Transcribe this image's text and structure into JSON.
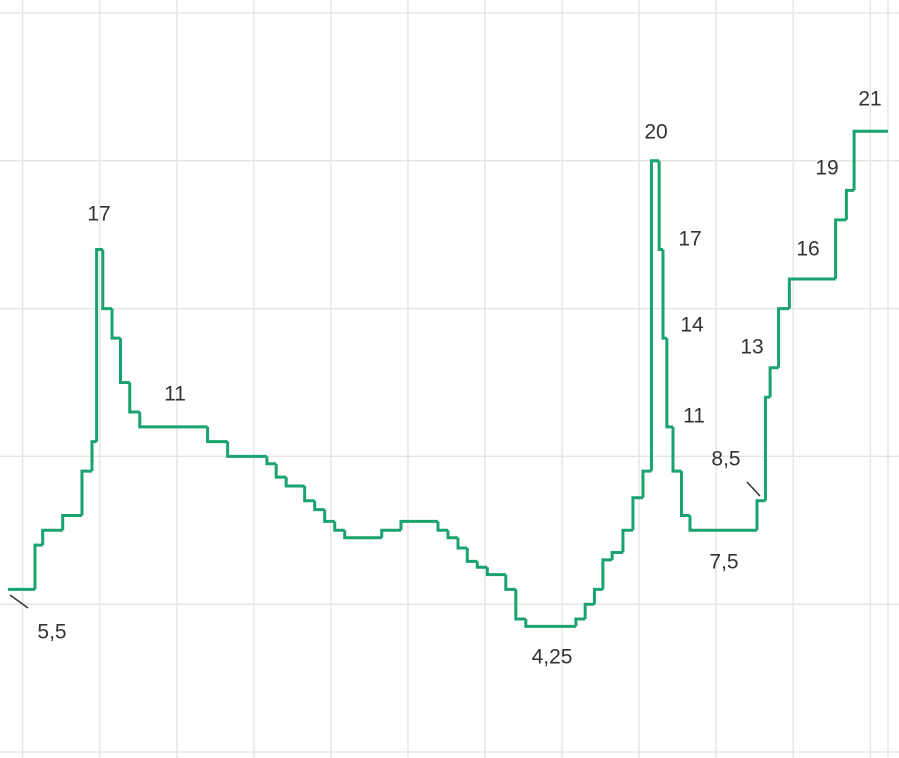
{
  "chart_data": {
    "type": "step",
    "x": [
      -0.19,
      0.16,
      0.26,
      0.52,
      0.77,
      0.9,
      0.96,
      1.04,
      1.16,
      1.27,
      1.39,
      1.52,
      2.4,
      2.66,
      3.17,
      3.29,
      3.42,
      3.66,
      3.79,
      3.92,
      4.05,
      4.18,
      4.66,
      4.91,
      5.39,
      5.52,
      5.65,
      5.77,
      5.9,
      6.03,
      6.27,
      6.4,
      6.53,
      7.18,
      7.3,
      7.42,
      7.53,
      7.65,
      7.79,
      7.92,
      8.05,
      8.16,
      8.26,
      8.31,
      8.36,
      8.44,
      8.55,
      8.66,
      9.53,
      9.64,
      9.7,
      9.81,
      9.95,
      10.55,
      10.69,
      10.79
    ],
    "values": [
      5.5,
      7,
      7.5,
      8,
      9.5,
      10.5,
      17,
      15,
      14,
      12.5,
      11.5,
      11,
      10.5,
      10,
      9.75,
      9.3,
      9,
      8.5,
      8.2,
      7.8,
      7.5,
      7.25,
      7.5,
      7.8,
      7.5,
      7.25,
      6.9,
      6.45,
      6.25,
      6,
      5.5,
      4.5,
      4.25,
      4.5,
      5,
      5.5,
      6.5,
      6.75,
      7.5,
      8.6,
      9.5,
      20,
      17,
      14,
      11,
      9.5,
      8,
      7.5,
      8.5,
      12,
      13,
      15,
      16,
      18,
      19,
      21
    ],
    "value_labels": [
      "5,5",
      null,
      null,
      null,
      null,
      null,
      "17",
      null,
      null,
      null,
      null,
      "11",
      null,
      null,
      null,
      null,
      null,
      null,
      null,
      null,
      null,
      null,
      null,
      null,
      null,
      null,
      null,
      null,
      null,
      null,
      null,
      null,
      "4,25",
      null,
      null,
      null,
      null,
      null,
      null,
      null,
      null,
      "20",
      "17",
      "14",
      "11",
      null,
      null,
      "7,5",
      "8,5",
      null,
      "13",
      null,
      "16",
      null,
      "19",
      "21"
    ],
    "color": "#1aa36f",
    "xlim": [
      -0.19,
      11.23
    ],
    "xticks": [
      0,
      1,
      2,
      3,
      4,
      5,
      6,
      7,
      8,
      9,
      10,
      11
    ],
    "ylim": [
      0,
      25
    ],
    "yticks": [
      0,
      5,
      10,
      15,
      20,
      25
    ],
    "grid": true
  }
}
